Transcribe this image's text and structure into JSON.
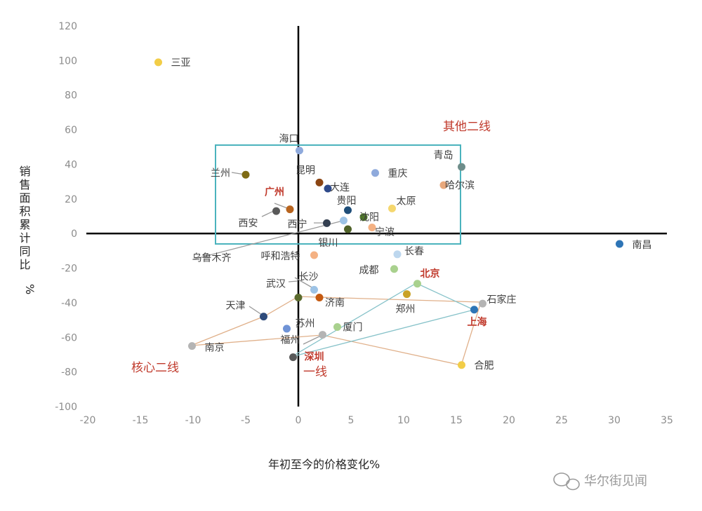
{
  "chart_data": {
    "type": "scatter",
    "xlabel": "年初至今的价格变化%",
    "ylabel": "销售面积累计同比%",
    "xlim": [
      -20,
      35
    ],
    "ylim": [
      -100,
      120
    ],
    "xticks": [
      "-20",
      "-15",
      "-10",
      "-5",
      "0",
      "5",
      "10",
      "15",
      "20",
      "25",
      "30",
      "35"
    ],
    "yticks": [
      "-100",
      "-80",
      "-60",
      "-40",
      "-20",
      "0",
      "20",
      "40",
      "60",
      "80",
      "100",
      "120"
    ],
    "grid": false,
    "points": [
      {
        "name": "三亚",
        "x": -13.3,
        "y": 99,
        "color": "#f2cd47"
      },
      {
        "name": "海口",
        "x": 0.1,
        "y": 48,
        "color": "#8faadc"
      },
      {
        "name": "青岛",
        "x": 15.5,
        "y": 38.5,
        "color": "#6e8d8a"
      },
      {
        "name": "兰州",
        "x": -5,
        "y": 34,
        "color": "#7f6b14"
      },
      {
        "name": "昆明",
        "x": 2,
        "y": 29.5,
        "color": "#8b4513"
      },
      {
        "name": "大连",
        "x": 2.8,
        "y": 26,
        "color": "#2e4a8a"
      },
      {
        "name": "重庆",
        "x": 7.3,
        "y": 35,
        "color": "#8faadc"
      },
      {
        "name": "哈尔滨",
        "x": 13.8,
        "y": 28,
        "color": "#e8a87c"
      },
      {
        "name": "广州",
        "x": -0.8,
        "y": 14,
        "color": "#b8641e"
      },
      {
        "name": "西安",
        "x": -2.1,
        "y": 13,
        "color": "#595959"
      },
      {
        "name": "贵阳",
        "x": 4.7,
        "y": 13.5,
        "color": "#1f4e79"
      },
      {
        "name": "太原",
        "x": 8.9,
        "y": 14.5,
        "color": "#f5d76e"
      },
      {
        "name": "沈阳",
        "x": 6.2,
        "y": 9.5,
        "color": "#4f7a28"
      },
      {
        "name": "西宁",
        "x": 2.7,
        "y": 6,
        "color": "#333f50"
      },
      {
        "name": "乌鲁木齐",
        "x": 4.3,
        "y": 7.5,
        "color": "#9dc3e6"
      },
      {
        "name": "银川",
        "x": 4.7,
        "y": 2.5,
        "color": "#4f6228"
      },
      {
        "name": "宁波",
        "x": 7,
        "y": 3.5,
        "color": "#f4b183"
      },
      {
        "name": "南昌",
        "x": 30.5,
        "y": -6,
        "color": "#2e75b6"
      },
      {
        "name": "呼和浩特",
        "x": 1.5,
        "y": -12.5,
        "color": "#f4b183"
      },
      {
        "name": "长春",
        "x": 9.4,
        "y": -12,
        "color": "#bdd7ee"
      },
      {
        "name": "成都",
        "x": 9.1,
        "y": -20.5,
        "color": "#a9d18e"
      },
      {
        "name": "北京",
        "x": 11.3,
        "y": -29,
        "color": "#a9d18e"
      },
      {
        "name": "长沙",
        "x": 1.5,
        "y": -32.5,
        "color": "#9dc3e6"
      },
      {
        "name": "武汉",
        "x": 0,
        "y": -37,
        "color": "#5b6b2e"
      },
      {
        "name": "济南",
        "x": 2,
        "y": -37,
        "color": "#c55a11"
      },
      {
        "name": "郑州",
        "x": 10.3,
        "y": -35,
        "color": "#c9a227"
      },
      {
        "name": "石家庄",
        "x": 17.5,
        "y": -40.5,
        "color": "#b4b4b4"
      },
      {
        "name": "上海",
        "x": 16.7,
        "y": -44,
        "color": "#2e75b6"
      },
      {
        "name": "天津",
        "x": -3.3,
        "y": -48,
        "color": "#2e4a7a"
      },
      {
        "name": "苏州",
        "x": -1.1,
        "y": -55,
        "color": "#6f93d6"
      },
      {
        "name": "厦门",
        "x": 3.7,
        "y": -54,
        "color": "#a9d18e"
      },
      {
        "name": "福州",
        "x": 2.3,
        "y": -58.5,
        "color": "#b4b4b4"
      },
      {
        "name": "南京",
        "x": -10.1,
        "y": -65,
        "color": "#b4b4b4"
      },
      {
        "name": "深圳",
        "x": -0.5,
        "y": -71.5,
        "color": "#595959"
      },
      {
        "name": "合肥",
        "x": 15.5,
        "y": -76,
        "color": "#f2cd47"
      }
    ],
    "annotations": {
      "group_other_second_tier": "其他二线",
      "group_core_second_tier": "核心二线",
      "group_first_tier": "一线"
    }
  },
  "watermark": "华尔街见闻"
}
